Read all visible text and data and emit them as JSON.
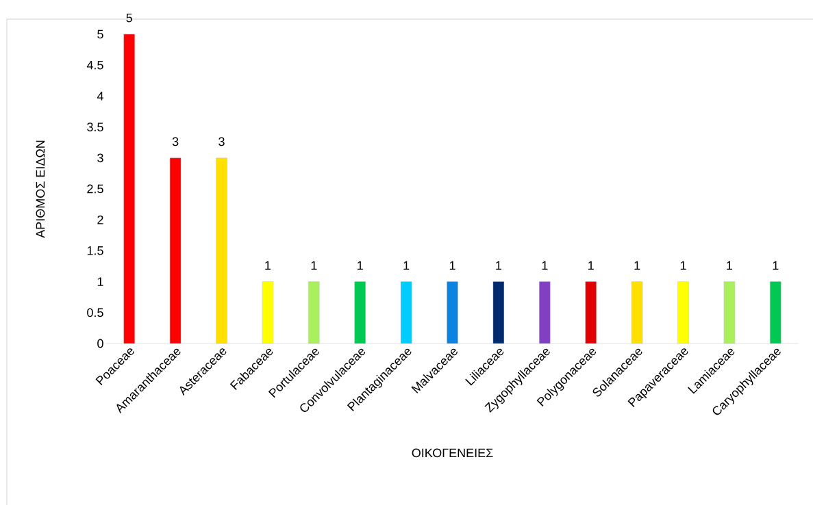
{
  "chart_data": {
    "type": "bar",
    "categories": [
      "Poaceae",
      "Amaranthaceae",
      "Asteraceae",
      "Fabaceae",
      "Portulaceae",
      "Convolvulaceae",
      "Plantaginaceae",
      "Malvaceae",
      "Liliaceae",
      "Zygophyllaceae",
      "Polygonaceae",
      "Solanaceae",
      "Papaveraceae",
      "Lamiaceae",
      "Caryophyllaceae"
    ],
    "values": [
      5,
      3,
      3,
      1,
      1,
      1,
      1,
      1,
      1,
      1,
      1,
      1,
      1,
      1,
      1
    ],
    "colors": [
      "#ff0000",
      "#ff0000",
      "#ffe000",
      "#ffff00",
      "#a9f05c",
      "#00c853",
      "#00ccff",
      "#0a84e0",
      "#002a6e",
      "#8040c0",
      "#e00000",
      "#ffe000",
      "#ffff00",
      "#a9f05c",
      "#00c853"
    ],
    "xlabel": "ΟΙΚΟΓΕΝΕΙΕΣ",
    "ylabel": "ΑΡΙΘΜΟΣ  ΕΙΔΩΝ",
    "ylim": [
      0,
      5
    ],
    "yticks": [
      0,
      0.5,
      1,
      1.5,
      2,
      2.5,
      3,
      3.5,
      4,
      4.5,
      5
    ],
    "data_labels": true
  }
}
